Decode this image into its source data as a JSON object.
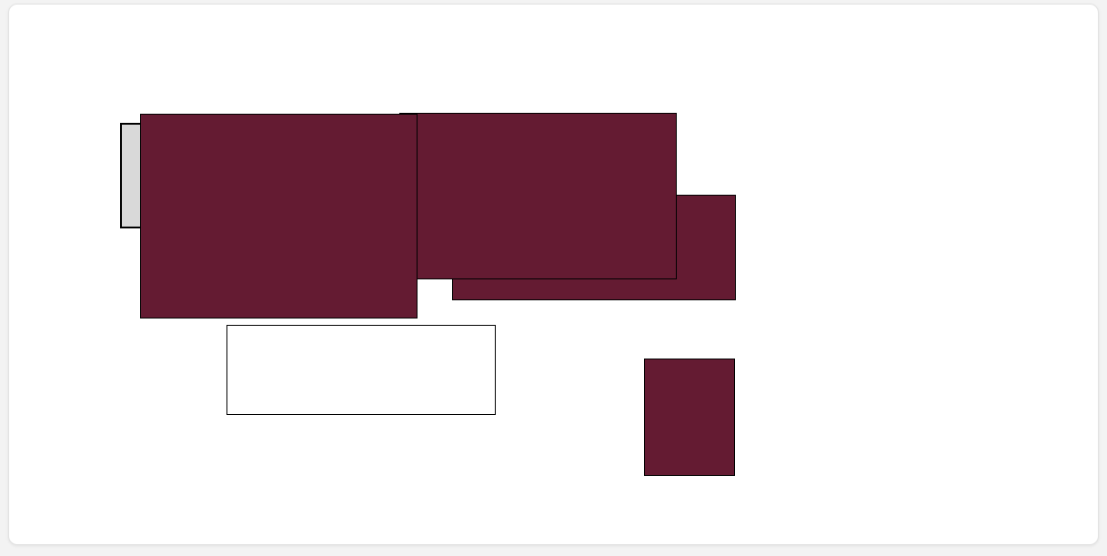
{
  "colors": {
    "canvas_background": "#ffffff",
    "page_background": "#f3f3f3",
    "block_fill": "#641b32",
    "gray_fill": "#d9d9d9",
    "outline_fill": "#ffffff",
    "border": "#000000"
  },
  "shapes": [
    {
      "name": "gray-rectangle",
      "fill": "gray"
    },
    {
      "name": "maroon-rectangle-large-left",
      "fill": "maroon"
    },
    {
      "name": "maroon-rectangle-back-right",
      "fill": "maroon"
    },
    {
      "name": "maroon-rectangle-top-middle",
      "fill": "maroon"
    },
    {
      "name": "white-outlined-rectangle",
      "fill": "white"
    },
    {
      "name": "maroon-rectangle-small",
      "fill": "maroon"
    }
  ]
}
